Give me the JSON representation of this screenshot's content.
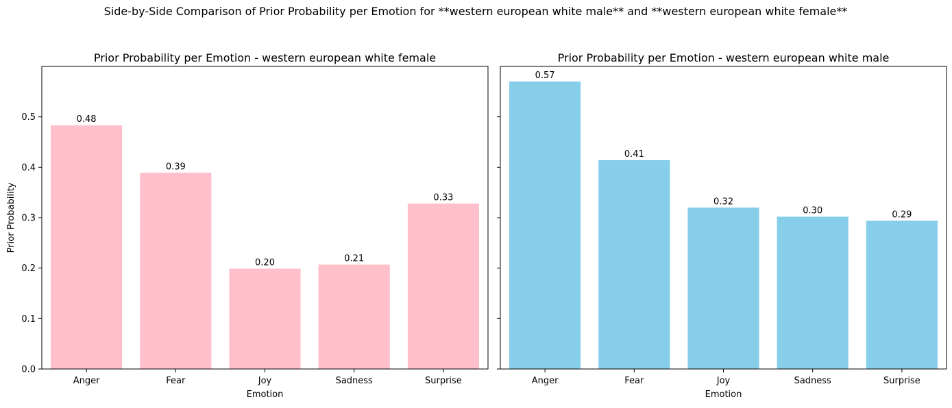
{
  "figure": {
    "suptitle": "Side-by-Side Comparison of Prior Probability per Emotion for **western european white male** and **western european white female**"
  },
  "chart_data": [
    {
      "type": "bar",
      "title": "Prior Probability per Emotion - western european white female",
      "xlabel": "Emotion",
      "ylabel": "Prior Probability",
      "categories": [
        "Anger",
        "Fear",
        "Joy",
        "Sadness",
        "Surprise"
      ],
      "values": [
        0.483,
        0.389,
        0.199,
        0.207,
        0.328
      ],
      "value_labels": [
        "0.48",
        "0.39",
        "0.20",
        "0.21",
        "0.33"
      ],
      "ylim": [
        0,
        0.6
      ],
      "yticks": [
        "0.0",
        "0.1",
        "0.2",
        "0.3",
        "0.4",
        "0.5"
      ],
      "color": "#ffc0cb",
      "grid": false
    },
    {
      "type": "bar",
      "title": "Prior Probability per Emotion - western european white male",
      "xlabel": "Emotion",
      "ylabel": "",
      "categories": [
        "Anger",
        "Fear",
        "Joy",
        "Sadness",
        "Surprise"
      ],
      "values": [
        0.57,
        0.414,
        0.32,
        0.302,
        0.294
      ],
      "value_labels": [
        "0.57",
        "0.41",
        "0.32",
        "0.30",
        "0.29"
      ],
      "ylim": [
        0,
        0.6
      ],
      "yticks": [
        "",
        "",
        "",
        "",
        "",
        ""
      ],
      "color": "#87ceeb",
      "grid": false
    }
  ]
}
